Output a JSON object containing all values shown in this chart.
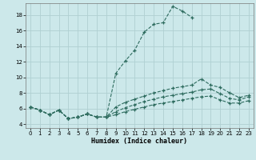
{
  "xlabel": "Humidex (Indice chaleur)",
  "bg_color": "#cce8ea",
  "grid_color": "#b0d0d2",
  "line_color": "#2d6b5e",
  "xlim": [
    -0.5,
    23.5
  ],
  "ylim": [
    3.5,
    19.5
  ],
  "yticks": [
    4,
    6,
    8,
    10,
    12,
    14,
    16,
    18
  ],
  "xticks": [
    0,
    1,
    2,
    3,
    4,
    5,
    6,
    7,
    8,
    9,
    10,
    11,
    12,
    13,
    14,
    15,
    16,
    17,
    18,
    19,
    20,
    21,
    22,
    23
  ],
  "series": [
    {
      "x": [
        0,
        1,
        2,
        3,
        4,
        5,
        6,
        7,
        8,
        9,
        10,
        11,
        12,
        13,
        14,
        15,
        16,
        17
      ],
      "y": [
        6.2,
        5.8,
        5.2,
        5.8,
        4.7,
        4.9,
        5.3,
        4.9,
        4.9,
        10.5,
        12.1,
        13.5,
        15.8,
        16.8,
        17.0,
        19.1,
        18.5,
        17.7
      ]
    },
    {
      "x": [
        0,
        1,
        2,
        3,
        4,
        5,
        6,
        7,
        8,
        9,
        10,
        11,
        12,
        13,
        14,
        15,
        16,
        17,
        18,
        19,
        20,
        21,
        22,
        23
      ],
      "y": [
        6.2,
        5.8,
        5.2,
        5.8,
        4.7,
        4.9,
        5.3,
        4.9,
        4.9,
        6.2,
        6.8,
        7.2,
        7.6,
        8.0,
        8.3,
        8.6,
        8.8,
        9.0,
        9.8,
        9.0,
        8.7,
        8.0,
        7.4,
        7.7
      ]
    },
    {
      "x": [
        0,
        1,
        2,
        3,
        4,
        5,
        6,
        7,
        8,
        9,
        10,
        11,
        12,
        13,
        14,
        15,
        16,
        17,
        18,
        19,
        20,
        21,
        22,
        23
      ],
      "y": [
        6.2,
        5.8,
        5.2,
        5.8,
        4.7,
        4.9,
        5.3,
        4.9,
        4.9,
        5.6,
        6.1,
        6.5,
        6.9,
        7.2,
        7.5,
        7.7,
        7.9,
        8.1,
        8.4,
        8.5,
        7.9,
        7.3,
        7.1,
        7.5
      ]
    },
    {
      "x": [
        0,
        1,
        2,
        3,
        4,
        5,
        6,
        7,
        8,
        9,
        10,
        11,
        12,
        13,
        14,
        15,
        16,
        17,
        18,
        19,
        20,
        21,
        22,
        23
      ],
      "y": [
        6.2,
        5.8,
        5.2,
        5.8,
        4.7,
        4.9,
        5.3,
        4.9,
        4.9,
        5.2,
        5.6,
        5.9,
        6.2,
        6.5,
        6.7,
        6.9,
        7.1,
        7.3,
        7.5,
        7.6,
        7.1,
        6.7,
        6.7,
        7.0
      ]
    }
  ]
}
